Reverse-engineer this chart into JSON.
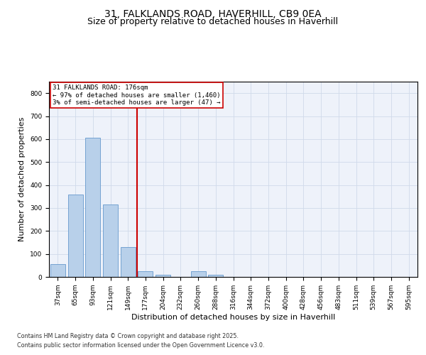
{
  "title_line1": "31, FALKLANDS ROAD, HAVERHILL, CB9 0EA",
  "title_line2": "Size of property relative to detached houses in Haverhill",
  "xlabel": "Distribution of detached houses by size in Haverhill",
  "ylabel": "Number of detached properties",
  "bar_labels": [
    "37sqm",
    "65sqm",
    "93sqm",
    "121sqm",
    "149sqm",
    "177sqm",
    "204sqm",
    "232sqm",
    "260sqm",
    "288sqm",
    "316sqm",
    "344sqm",
    "372sqm",
    "400sqm",
    "428sqm",
    "456sqm",
    "483sqm",
    "511sqm",
    "539sqm",
    "567sqm",
    "595sqm"
  ],
  "bar_values": [
    55,
    360,
    605,
    315,
    130,
    25,
    10,
    0,
    25,
    10,
    0,
    0,
    0,
    0,
    0,
    0,
    0,
    0,
    0,
    0,
    0
  ],
  "bar_color": "#b8d0ea",
  "bar_edge_color": "#6699cc",
  "grid_color": "#d0daea",
  "background_color": "#eef2fa",
  "red_line_color": "#cc0000",
  "red_line_x": 4.5,
  "annotation_text": "31 FALKLANDS ROAD: 176sqm\n← 97% of detached houses are smaller (1,460)\n3% of semi-detached houses are larger (47) →",
  "annotation_box_color": "#ffffff",
  "annotation_border_color": "#cc0000",
  "ylim": [
    0,
    850
  ],
  "yticks": [
    0,
    100,
    200,
    300,
    400,
    500,
    600,
    700,
    800
  ],
  "footer_line1": "Contains HM Land Registry data © Crown copyright and database right 2025.",
  "footer_line2": "Contains public sector information licensed under the Open Government Licence v3.0.",
  "title_fontsize": 10,
  "subtitle_fontsize": 9,
  "tick_fontsize": 6.5,
  "axis_label_fontsize": 8,
  "ylabel_fontsize": 8
}
